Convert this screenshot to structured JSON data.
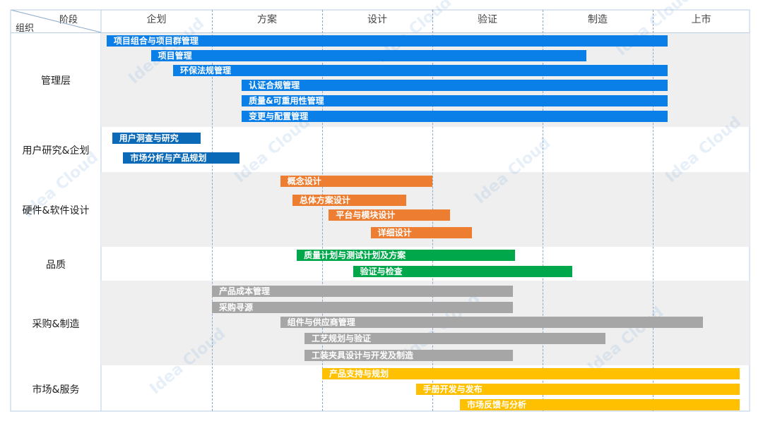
{
  "header": {
    "phase_label": "阶段",
    "org_label": "组织"
  },
  "colors": {
    "blue": "#0a7fe8",
    "darkblue": "#0b6ab8",
    "orange": "#ed7d31",
    "green": "#00a84b",
    "gray": "#a6a6a6",
    "yellow": "#ffc000"
  },
  "chart_data": {
    "type": "gantt",
    "phases": [
      "企划",
      "方案",
      "设计",
      "验证",
      "制造",
      "上市"
    ],
    "rows": [
      {
        "name": "管理层",
        "tasks": [
          {
            "label": "项目组合与项目群管理",
            "start": 0.05,
            "end": 5.15,
            "color": "blue"
          },
          {
            "label": "项目管理",
            "start": 0.45,
            "end": 4.4,
            "color": "blue"
          },
          {
            "label": "环保法规管理",
            "start": 0.65,
            "end": 5.15,
            "color": "blue"
          },
          {
            "label": "认证合规管理",
            "start": 1.27,
            "end": 5.15,
            "color": "blue"
          },
          {
            "label": "质量&可重用性管理",
            "start": 1.27,
            "end": 5.15,
            "color": "blue"
          },
          {
            "label": "变更与配置管理",
            "start": 1.27,
            "end": 5.15,
            "color": "blue"
          }
        ]
      },
      {
        "name": "用户研究&企划",
        "tasks": [
          {
            "label": "用户洞查与研究",
            "start": 0.1,
            "end": 0.9,
            "color": "darkblue"
          },
          {
            "label": "市场分析与产品规划",
            "start": 0.2,
            "end": 1.25,
            "color": "darkblue"
          }
        ]
      },
      {
        "name": "硬件&软件设计",
        "tasks": [
          {
            "label": "概念设计",
            "start": 1.62,
            "end": 3.0,
            "color": "orange"
          },
          {
            "label": "总体方案设计",
            "start": 1.73,
            "end": 2.76,
            "color": "orange"
          },
          {
            "label": "平台与模块设计",
            "start": 2.06,
            "end": 3.16,
            "color": "orange"
          },
          {
            "label": "详细设计",
            "start": 2.44,
            "end": 3.36,
            "color": "orange"
          }
        ]
      },
      {
        "name": "品质",
        "tasks": [
          {
            "label": "质量计划与测试计划及方案",
            "start": 1.77,
            "end": 3.75,
            "color": "green"
          },
          {
            "label": "验证与检查",
            "start": 2.28,
            "end": 4.27,
            "color": "green"
          }
        ]
      },
      {
        "name": "采购&制造",
        "tasks": [
          {
            "label": "产品成本管理",
            "start": 1.0,
            "end": 3.73,
            "color": "gray"
          },
          {
            "label": "采购寻源",
            "start": 1.0,
            "end": 3.73,
            "color": "gray"
          },
          {
            "label": "组件与供应商管理",
            "start": 1.62,
            "end": 5.52,
            "color": "gray"
          },
          {
            "label": "工艺规划与验证",
            "start": 1.84,
            "end": 4.57,
            "color": "gray"
          },
          {
            "label": "工装夹具设计与开发及制造",
            "start": 1.84,
            "end": 3.73,
            "color": "gray"
          }
        ]
      },
      {
        "name": "市场&服务",
        "tasks": [
          {
            "label": "产品支持与规划",
            "start": 2.0,
            "end": 5.9,
            "color": "yellow"
          },
          {
            "label": "手册开发与发布",
            "start": 2.85,
            "end": 5.9,
            "color": "yellow"
          },
          {
            "label": "市场反馈与分析",
            "start": 3.25,
            "end": 5.9,
            "color": "yellow"
          }
        ]
      }
    ]
  }
}
